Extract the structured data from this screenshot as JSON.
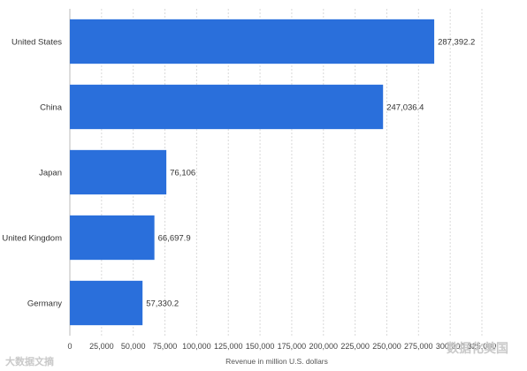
{
  "chart_data": {
    "type": "bar",
    "orientation": "horizontal",
    "categories": [
      "United States",
      "China",
      "Japan",
      "United Kingdom",
      "Germany"
    ],
    "values": [
      287392.2,
      247036.4,
      76106,
      66697.9,
      57330.2
    ],
    "value_labels": [
      "287,392.2",
      "247,036.4",
      "76,106",
      "66,697.9",
      "57,330.2"
    ],
    "xlabel": "Revenue in million U.S. dollars",
    "ylabel": "",
    "xlim": [
      0,
      325000
    ],
    "x_ticks": [
      0,
      25000,
      50000,
      75000,
      100000,
      125000,
      150000,
      175000,
      200000,
      225000,
      250000,
      275000,
      300000,
      325000
    ],
    "x_tick_labels": [
      "0",
      "25,000",
      "50,000",
      "75,000",
      "100,000",
      "125,000",
      "150,000",
      "175,000",
      "200,000",
      "225,000",
      "250,000",
      "275,000",
      "300,000",
      "325,000"
    ],
    "grid": true,
    "bar_color": "#2a6fdb"
  },
  "watermarks": {
    "left": "大数据文摘",
    "right": "数据化美国"
  }
}
